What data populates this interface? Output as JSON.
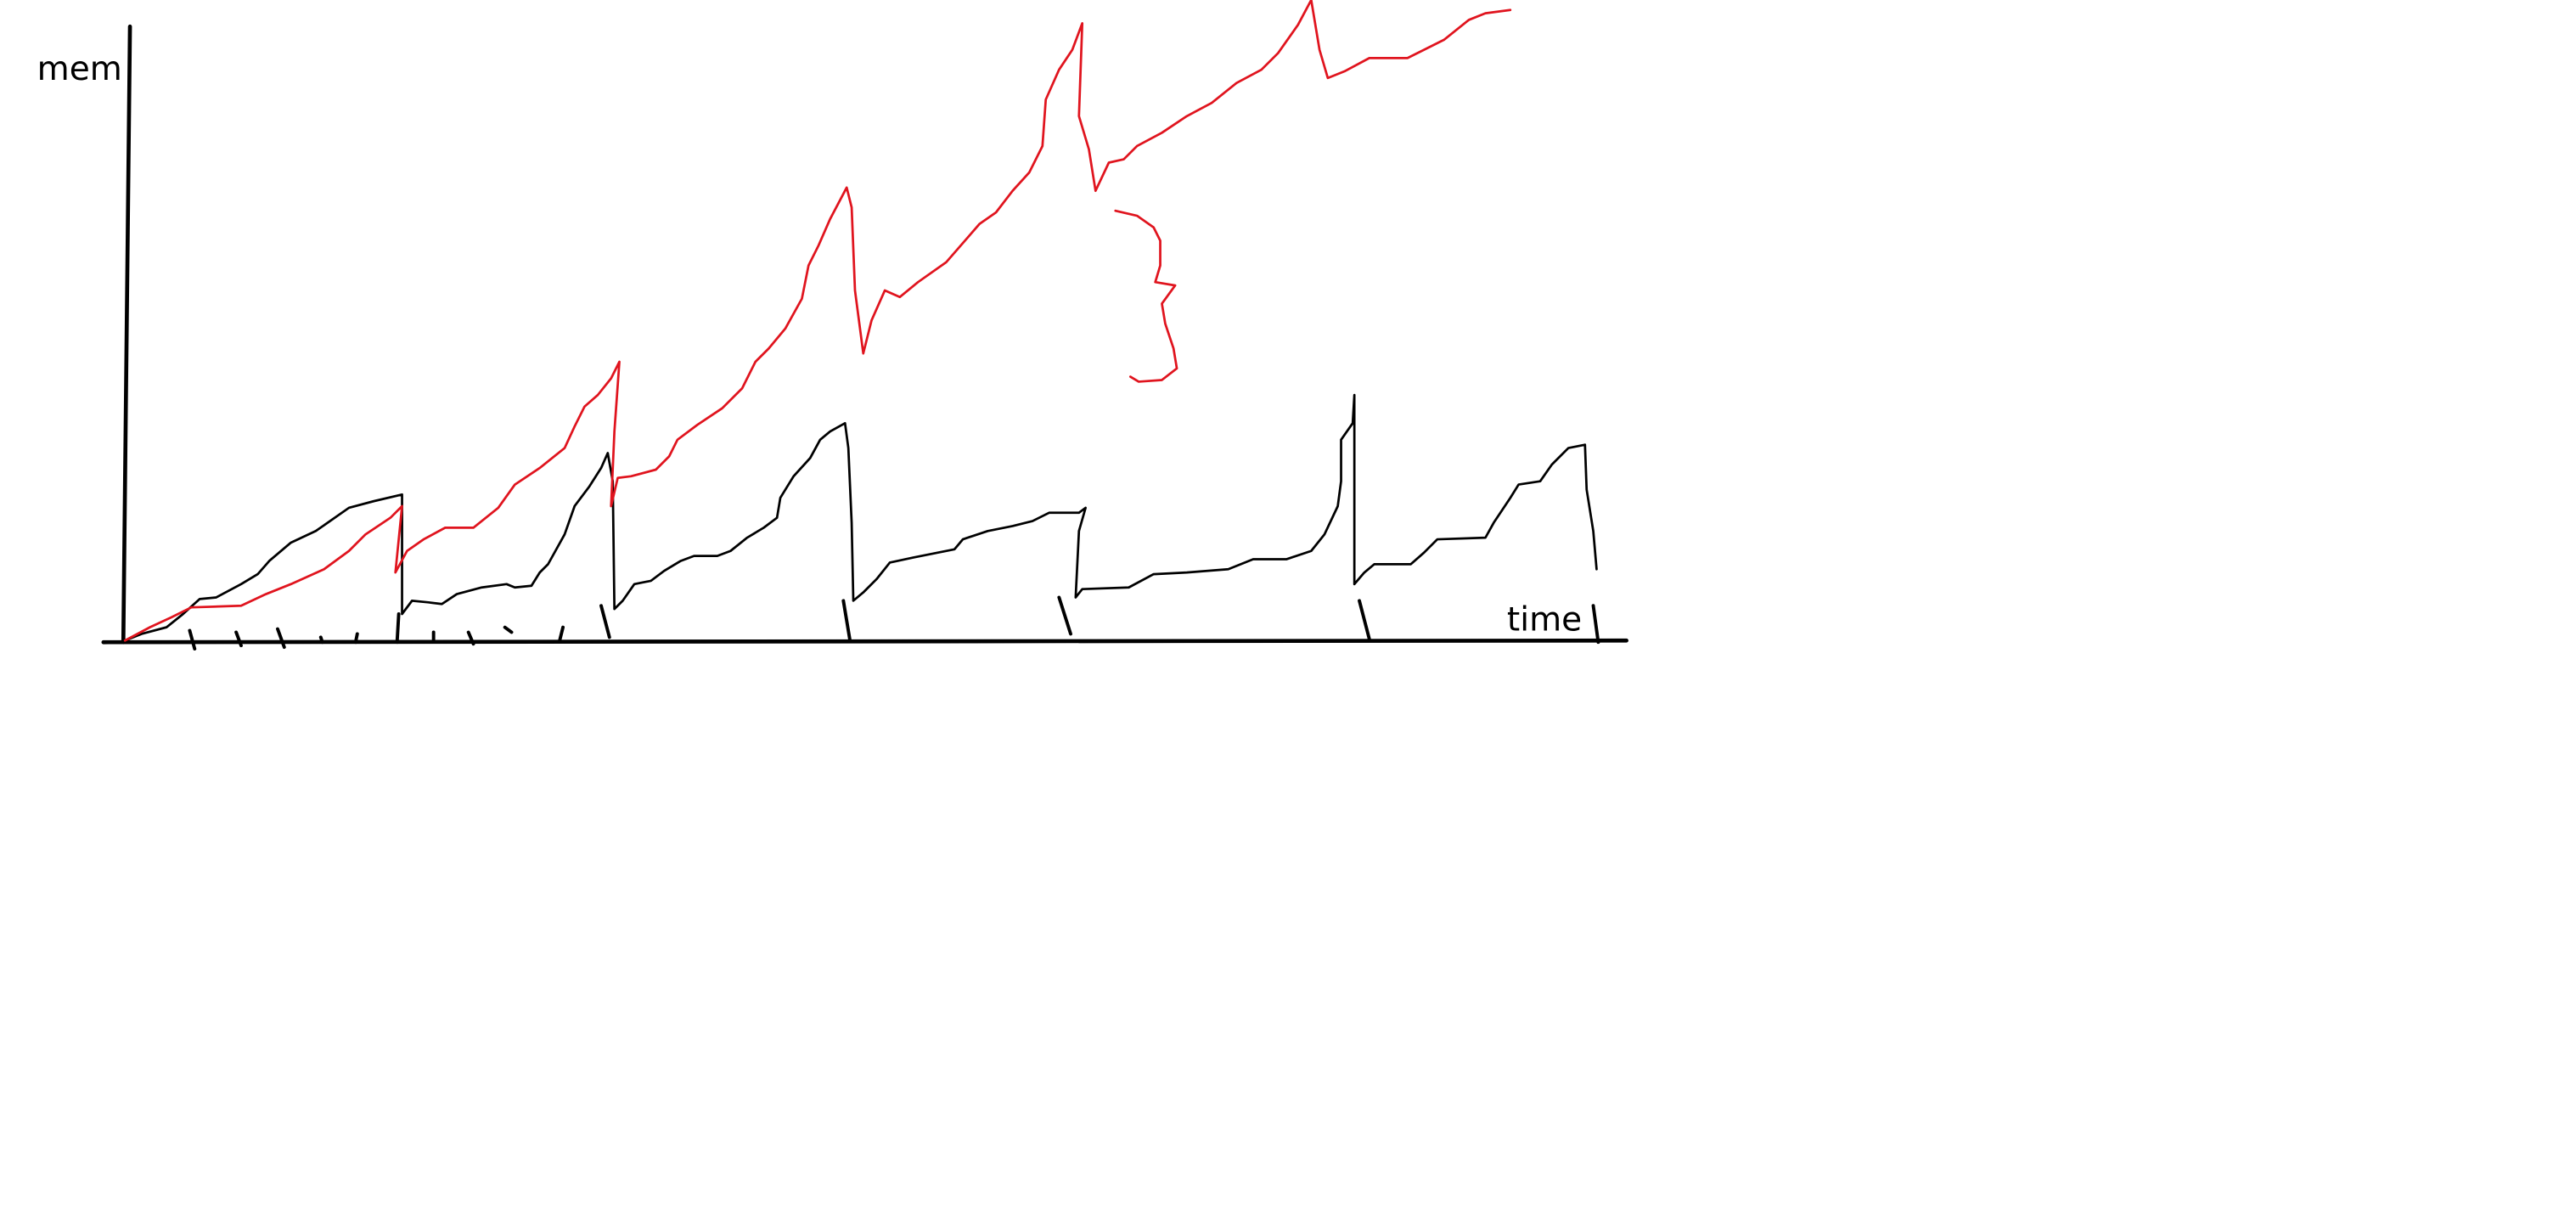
{
  "axis_labels": {
    "y": "mem",
    "x": "time"
  }
}
